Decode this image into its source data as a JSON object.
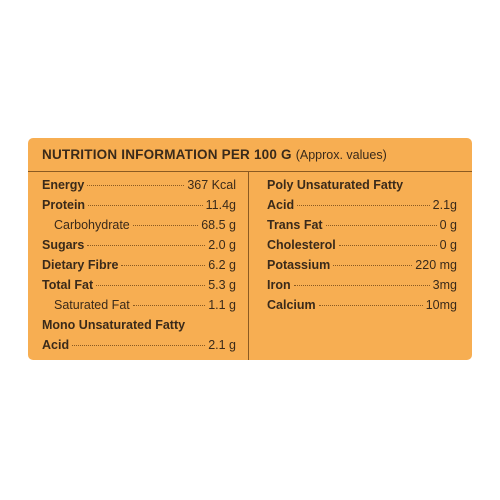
{
  "header": {
    "title": "NUTRITION INFORMATION PER 100 G",
    "subtitle": "(Approx. values)"
  },
  "left": {
    "energy": {
      "label": "Energy",
      "value": "367 Kcal"
    },
    "protein": {
      "label": "Protein",
      "value": "11.4g"
    },
    "carbohydrate": {
      "label": "Carbohydrate",
      "value": "68.5 g"
    },
    "sugars": {
      "label": "Sugars",
      "value": "2.0 g"
    },
    "fibre": {
      "label": "Dietary Fibre",
      "value": "6.2 g"
    },
    "total_fat": {
      "label": "Total Fat",
      "value": "5.3 g"
    },
    "saturated_fat": {
      "label": "Saturated Fat",
      "value": "1.1 g"
    },
    "mono_line1": "Mono Unsaturated Fatty",
    "mono": {
      "label": "Acid",
      "value": "2.1 g"
    }
  },
  "right": {
    "poly_line1": "Poly Unsaturated Fatty",
    "poly": {
      "label": "Acid",
      "value": "2.1g"
    },
    "trans_fat": {
      "label": "Trans Fat",
      "value": "0 g"
    },
    "cholesterol": {
      "label": "Cholesterol",
      "value": "0 g"
    },
    "potassium": {
      "label": "Potassium",
      "value": "220 mg"
    },
    "iron": {
      "label": "Iron",
      "value": "3mg"
    },
    "calcium": {
      "label": "Calcium",
      "value": "10mg"
    }
  },
  "colors": {
    "panel": "#f7ae52",
    "text": "#3a2a1a",
    "rule": "#8a5a22"
  }
}
